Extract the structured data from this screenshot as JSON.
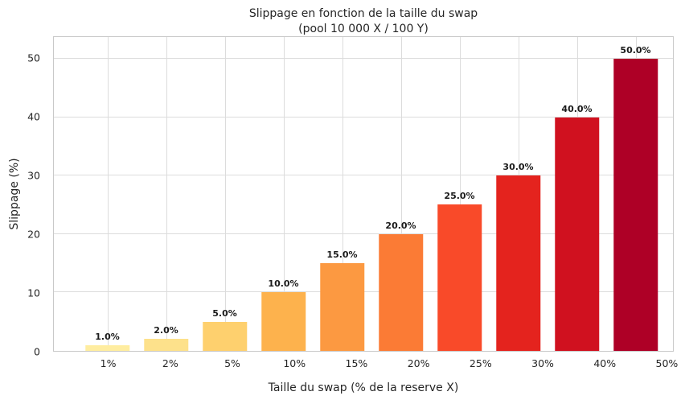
{
  "title": {
    "line1": "Slippage en fonction de la taille du swap",
    "line2": "(pool 10 000 X / 100 Y)"
  },
  "chart_data": {
    "type": "bar",
    "title": "Slippage en fonction de la taille du swap",
    "subtitle": "(pool 10 000 X / 100 Y)",
    "categories": [
      "1%",
      "2%",
      "5%",
      "10%",
      "15%",
      "20%",
      "25%",
      "30%",
      "40%",
      "50%"
    ],
    "values": [
      1,
      2,
      5,
      10,
      15,
      20,
      25,
      30,
      40,
      50
    ],
    "bar_labels": [
      "1.0%",
      "2.0%",
      "5.0%",
      "10.0%",
      "15.0%",
      "20.0%",
      "25.0%",
      "30.0%",
      "40.0%",
      "50.0%"
    ],
    "bar_colors": [
      "#FFEDA0",
      "#FDE18B",
      "#FED06E",
      "#FDB24D",
      "#FC9941",
      "#FB7B35",
      "#F94A29",
      "#E4231E",
      "#D0111F",
      "#AE0026"
    ],
    "xlabel": "Taille du swap (% de la reserve X)",
    "ylabel": "Slippage (%)",
    "ylim": [
      0,
      53.7
    ],
    "yticks": [
      0,
      10,
      20,
      30,
      40,
      50
    ],
    "grid": true,
    "legend": "none",
    "grid_color": "#dcdcdc",
    "spine_color": "#c9c9c9",
    "text_color": "#262626",
    "bar_label_color": "#1a1a1a",
    "background_color": "#ffffff"
  }
}
